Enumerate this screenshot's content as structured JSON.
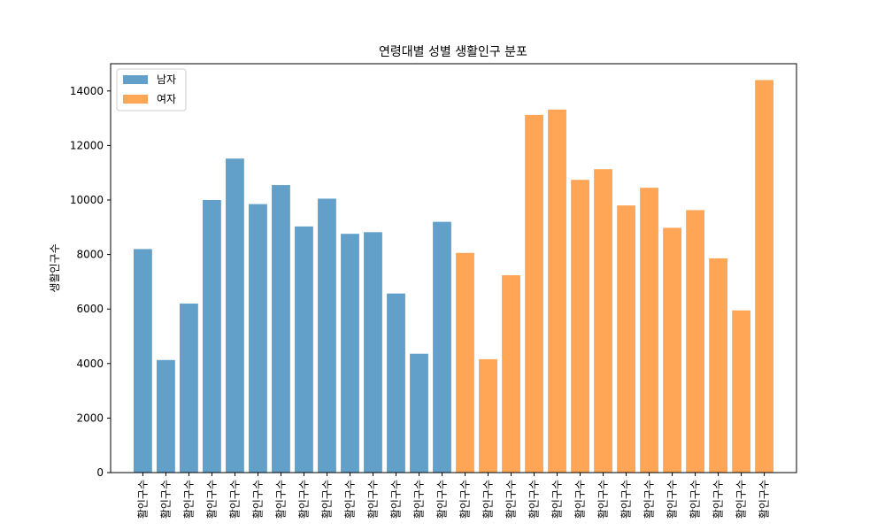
{
  "chart_data": {
    "type": "bar",
    "title": "연령대별 성별 생활인구 분포",
    "xlabel": "",
    "ylabel": "생활인구수",
    "ylim": [
      0,
      15000
    ],
    "yticks": [
      0,
      2000,
      4000,
      6000,
      8000,
      10000,
      12000,
      14000
    ],
    "ytick_labels": [
      "0",
      "2000",
      "4000",
      "6000",
      "8000",
      "10000",
      "12000",
      "14000"
    ],
    "grid": false,
    "legend": "top-left",
    "categories": [
      "활인구수",
      "활인구수",
      "활인구수",
      "활인구수",
      "활인구수",
      "활인구수",
      "활인구수",
      "활인구수",
      "활인구수",
      "활인구수",
      "활인구수",
      "활인구수",
      "활인구수",
      "활인구수",
      "활인구수",
      "활인구수",
      "활인구수",
      "활인구수",
      "활인구수",
      "활인구수",
      "활인구수",
      "활인구수",
      "활인구수",
      "활인구수",
      "활인구수",
      "활인구수",
      "활인구수",
      "활인구수"
    ],
    "series": [
      {
        "name": "남자",
        "color": "#1f77b4",
        "values": [
          8200,
          4130,
          6200,
          10000,
          11520,
          9850,
          10550,
          9030,
          10050,
          8760,
          8820,
          6570,
          4360,
          9200,
          null,
          null,
          null,
          null,
          null,
          null,
          null,
          null,
          null,
          null,
          null,
          null,
          null,
          null
        ]
      },
      {
        "name": "여자",
        "color": "#ff7f0e",
        "values": [
          null,
          null,
          null,
          null,
          null,
          null,
          null,
          null,
          null,
          null,
          null,
          null,
          null,
          null,
          8060,
          4160,
          7240,
          13120,
          13320,
          10740,
          11130,
          9800,
          10450,
          8980,
          9630,
          7860,
          5950,
          14400
        ]
      }
    ]
  }
}
